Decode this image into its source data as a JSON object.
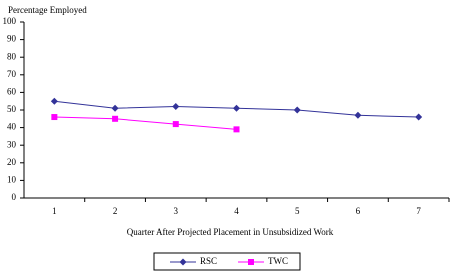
{
  "chart_data": {
    "type": "line",
    "title": "Percentage Employed",
    "x_label": "Quarter After Projected Placement in Unsubsidized Work",
    "categories": [
      "1",
      "2",
      "3",
      "4",
      "5",
      "6",
      "7"
    ],
    "series": [
      {
        "name": "RSC",
        "color": "#333399",
        "marker": "diamond",
        "values": [
          55,
          51,
          52,
          51,
          50,
          47,
          46
        ]
      },
      {
        "name": "TWC",
        "color": "#ff00ff",
        "marker": "square",
        "values": [
          46,
          45,
          42,
          39,
          null,
          null,
          null
        ]
      }
    ],
    "ylim": [
      0,
      100
    ],
    "yticks": [
      0,
      10,
      20,
      30,
      40,
      50,
      60,
      70,
      80,
      90,
      100
    ],
    "grid": false,
    "legend": "bottom"
  }
}
